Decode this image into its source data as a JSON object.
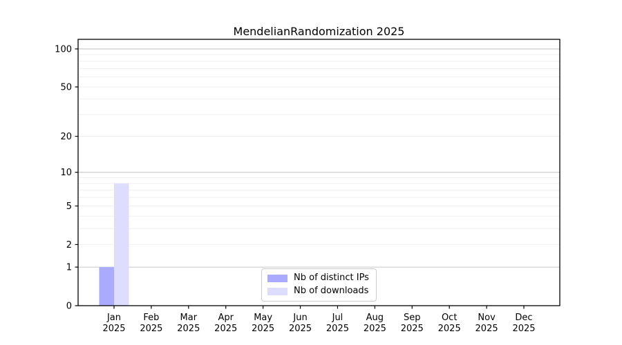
{
  "figure": {
    "background": "#ffffff"
  },
  "chart_data": {
    "type": "bar",
    "title": "MendelianRandomization 2025",
    "categories": [
      "Jan",
      "Feb",
      "Mar",
      "Apr",
      "May",
      "Jun",
      "Jul",
      "Aug",
      "Sep",
      "Oct",
      "Nov",
      "Dec"
    ],
    "x_tick_second_line": "2025",
    "series": [
      {
        "name": "Nb of distinct IPs",
        "color": "#aaaaff",
        "values": [
          1,
          0,
          0,
          0,
          0,
          0,
          0,
          0,
          0,
          0,
          0,
          0
        ]
      },
      {
        "name": "Nb of downloads",
        "color": "#ddddff",
        "values": [
          8,
          0,
          0,
          0,
          0,
          0,
          0,
          0,
          0,
          0,
          0,
          0
        ]
      }
    ],
    "yscale": "log1p",
    "yticks": [
      0,
      1,
      2,
      5,
      10,
      20,
      50,
      100
    ],
    "major_gridlines": [
      1,
      10,
      100
    ],
    "minor_gridlines": [
      2,
      3,
      4,
      5,
      6,
      7,
      8,
      9,
      20,
      30,
      40,
      50,
      60,
      70,
      80,
      90
    ],
    "ylim": [
      0,
      119
    ],
    "grid": "horizontal",
    "legend_position": "bottom-center",
    "axis_color": "#000000",
    "major_grid_color": "#c8c8c8",
    "minor_grid_color": "#efefef",
    "text_color": "#000000"
  }
}
